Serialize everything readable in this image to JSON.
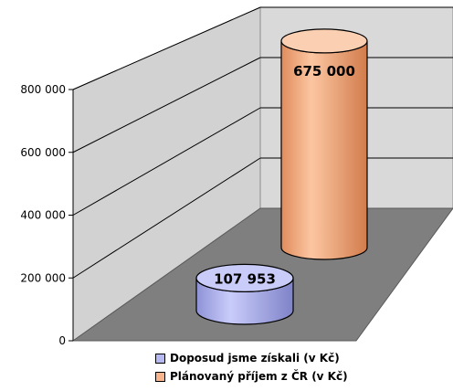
{
  "chart_data": {
    "type": "bar",
    "style": "3d-cylinder",
    "categories": [
      "Doposud jsme získali (v Kč)",
      "Plánovaný příjem z ČR (v Kč)"
    ],
    "values": [
      107953,
      675000
    ],
    "data_labels": [
      "107 953",
      "675 000"
    ],
    "colors": [
      "#b6b9f2",
      "#f8b48c"
    ],
    "ylim": [
      0,
      800000
    ],
    "yticks": [
      0,
      200000,
      400000,
      600000,
      800000
    ],
    "ytick_labels": [
      "0",
      "200 000",
      "400 000",
      "600 000",
      "800 000"
    ],
    "grid": true,
    "legend_position": "bottom-right"
  }
}
